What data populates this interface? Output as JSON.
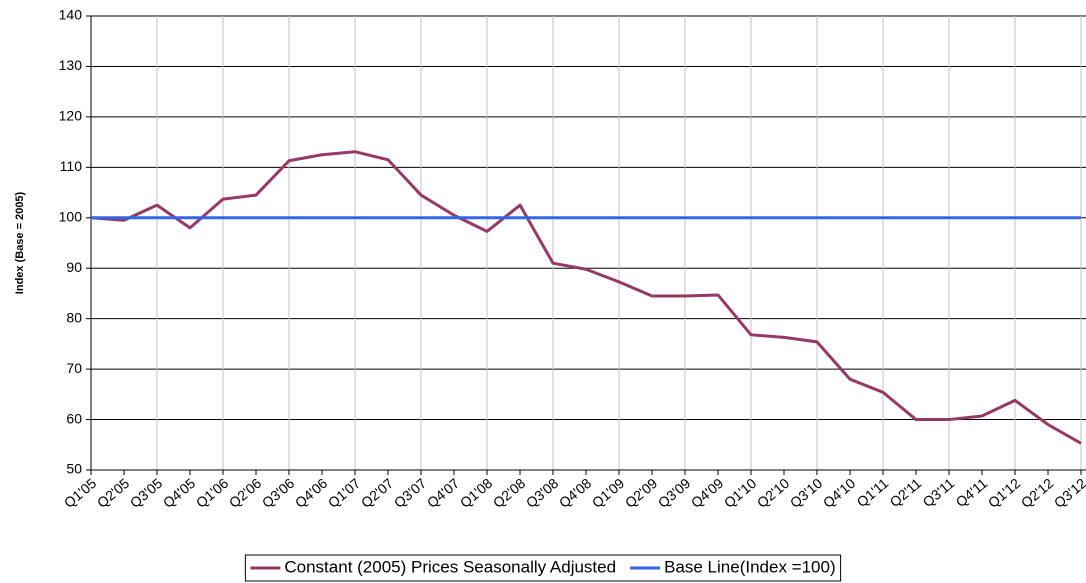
{
  "chart_data": {
    "type": "line",
    "y_label": "Index (Base = 2005)",
    "categories": [
      "Q1'05",
      "Q2'05",
      "Q3'05",
      "Q4'05",
      "Q1'06",
      "Q2'06",
      "Q3'06",
      "Q4'06",
      "Q1'07",
      "Q2'07",
      "Q3'07",
      "Q4'07",
      "Q1'08",
      "Q2'08",
      "Q3'08",
      "Q4'08",
      "Q1'09",
      "Q2'09",
      "Q3'09",
      "Q4'09",
      "Q1'10",
      "Q2'10",
      "Q3'10",
      "Q4'10",
      "Q1'11",
      "Q2'11",
      "Q3'11",
      "Q4'11",
      "Q1'12",
      "Q2'12",
      "Q3'12"
    ],
    "series": [
      {
        "name": "Constant (2005) Prices Seasonally Adjusted",
        "color": "#953966",
        "values": [
          100,
          99.5,
          102.5,
          98,
          103.7,
          104.5,
          111.3,
          112.5,
          113.1,
          111.5,
          104.5,
          100.5,
          97.3,
          102.5,
          91,
          89.8,
          87.3,
          84.5,
          84.5,
          84.7,
          76.8,
          76.3,
          75.4,
          68,
          65.4,
          60,
          60,
          60.7,
          63.8,
          59,
          55.3
        ]
      },
      {
        "name": "Base Line(Index =100)",
        "color": "#3366e6",
        "values": [
          100,
          100,
          100,
          100,
          100,
          100,
          100,
          100,
          100,
          100,
          100,
          100,
          100,
          100,
          100,
          100,
          100,
          100,
          100,
          100,
          100,
          100,
          100,
          100,
          100,
          100,
          100,
          100,
          100,
          100,
          100
        ]
      }
    ],
    "ylim": [
      50,
      140
    ],
    "yticks": [
      50,
      60,
      70,
      80,
      90,
      100,
      110,
      120,
      130,
      140
    ],
    "grid": true,
    "legend": "bottom"
  }
}
